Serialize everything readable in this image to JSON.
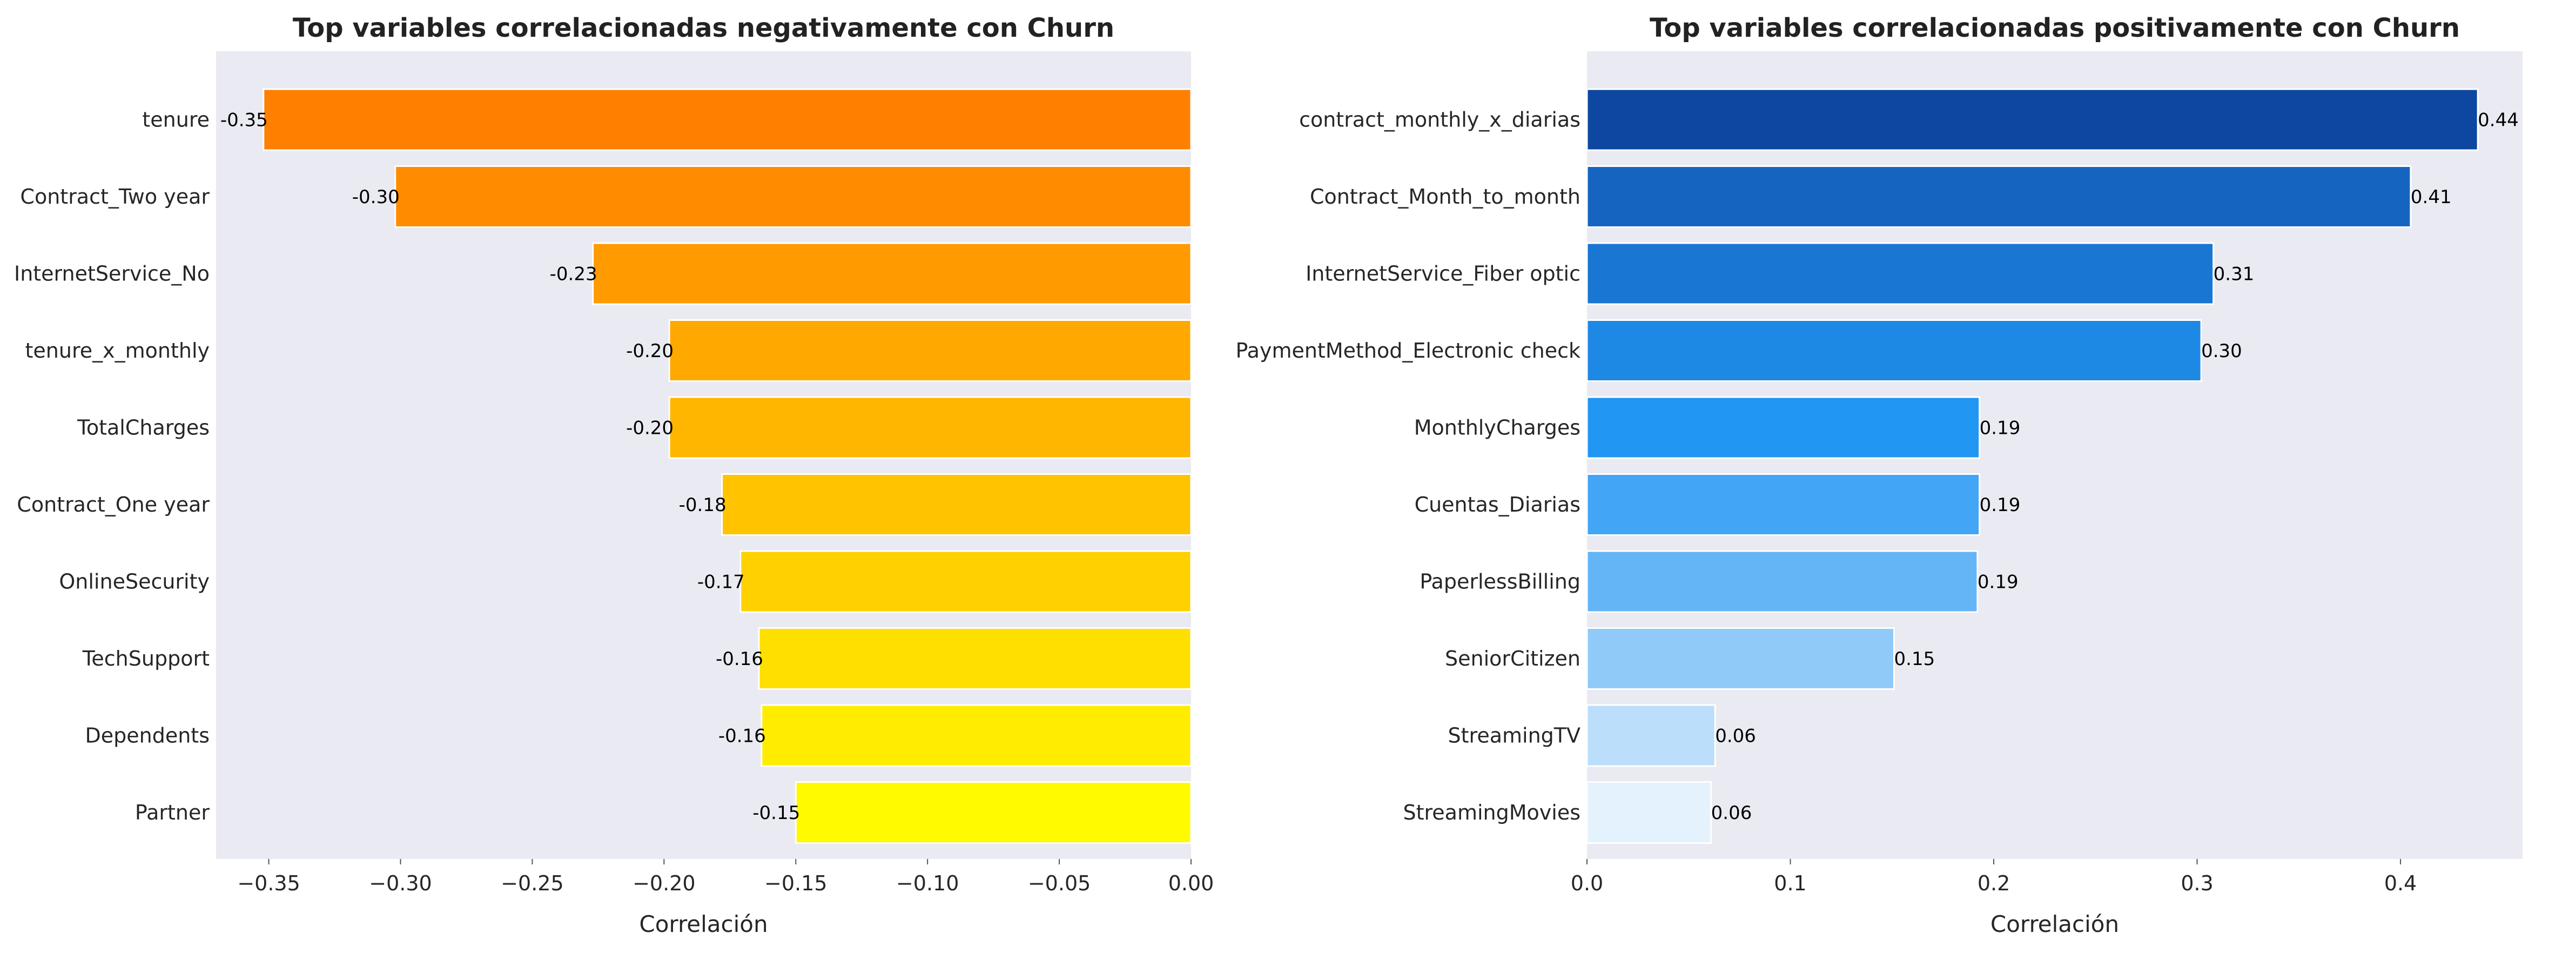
{
  "chart_data": [
    {
      "type": "bar",
      "orientation": "horizontal",
      "title": "Top variables correlacionadas negativamente con Churn",
      "xlabel": "Correlación",
      "ylabel": "",
      "xlim": [
        -0.37,
        0.0
      ],
      "xticks": [
        -0.35,
        -0.3,
        -0.25,
        -0.2,
        -0.15,
        -0.1,
        -0.05,
        0.0
      ],
      "xtick_labels": [
        "−0.35",
        "−0.30",
        "−0.25",
        "−0.20",
        "−0.15",
        "−0.10",
        "−0.05",
        "0.00"
      ],
      "categories": [
        "tenure",
        "Contract_Two year",
        "InternetService_No",
        "tenure_x_monthly",
        "TotalCharges",
        "Contract_One year",
        "OnlineSecurity",
        "TechSupport",
        "Dependents",
        "Partner"
      ],
      "values": [
        -0.352,
        -0.302,
        -0.227,
        -0.198,
        -0.198,
        -0.178,
        -0.171,
        -0.164,
        -0.163,
        -0.15
      ],
      "data_labels": [
        "-0.35",
        "-0.30",
        "-0.23",
        "-0.20",
        "-0.20",
        "-0.18",
        "-0.17",
        "-0.16",
        "-0.16",
        "-0.15"
      ],
      "colors": [
        "#FF7F00",
        "#FF8C00",
        "#FF9A00",
        "#FFA800",
        "#FFB600",
        "#FFC300",
        "#FFD100",
        "#FFDF00",
        "#FFEC00",
        "#FFFA00"
      ],
      "grid": false,
      "background": "#EAEAF2"
    },
    {
      "type": "bar",
      "orientation": "horizontal",
      "title": "Top variables correlacionadas positivamente con Churn",
      "xlabel": "Correlación",
      "ylabel": "",
      "xlim": [
        0.0,
        0.46
      ],
      "xticks": [
        0.0,
        0.1,
        0.2,
        0.3,
        0.4
      ],
      "xtick_labels": [
        "0.0",
        "0.1",
        "0.2",
        "0.3",
        "0.4"
      ],
      "categories": [
        "contract_monthly_x_diarias",
        "Contract_Month_to_month",
        "InternetService_Fiber optic",
        "PaymentMethod_Electronic check",
        "MonthlyCharges",
        "Cuentas_Diarias",
        "PaperlessBilling",
        "SeniorCitizen",
        "StreamingTV",
        "StreamingMovies"
      ],
      "values": [
        0.438,
        0.405,
        0.308,
        0.302,
        0.193,
        0.193,
        0.192,
        0.151,
        0.063,
        0.061
      ],
      "data_labels": [
        "0.44",
        "0.41",
        "0.31",
        "0.30",
        "0.19",
        "0.19",
        "0.19",
        "0.15",
        "0.06",
        "0.06"
      ],
      "colors": [
        "#0D47A1",
        "#1565C0",
        "#1976D2",
        "#1E88E5",
        "#2196F3",
        "#42A5F5",
        "#64B5F6",
        "#90CAF9",
        "#BBDEFB",
        "#E3F2FD"
      ],
      "grid": false,
      "background": "#EAEAF2"
    }
  ]
}
